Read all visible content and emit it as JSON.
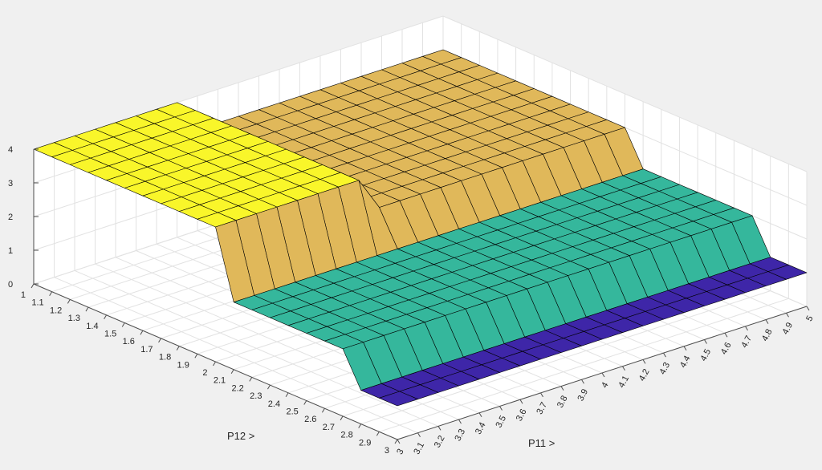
{
  "chart_data": {
    "type": "surface",
    "title": "",
    "xlabel": "P11 >",
    "ylabel": "P12 >",
    "zlabel": "",
    "xlim": [
      3,
      5
    ],
    "ylim": [
      1,
      3
    ],
    "zlim": [
      0,
      4
    ],
    "x_ticks": [
      "3",
      "3.1",
      "3.2",
      "3.3",
      "3.4",
      "3.5",
      "3.6",
      "3.7",
      "3.8",
      "3.9",
      "4",
      "4.1",
      "4.2",
      "4.3",
      "4.4",
      "4.5",
      "4.6",
      "4.7",
      "4.8",
      "4.9",
      "5"
    ],
    "y_ticks": [
      "1",
      "1.1",
      "1.2",
      "1.3",
      "1.4",
      "1.5",
      "1.6",
      "1.7",
      "1.8",
      "1.9",
      "2",
      "2.1",
      "2.2",
      "2.3",
      "2.4",
      "2.5",
      "2.6",
      "2.7",
      "2.8",
      "2.9",
      "3"
    ],
    "z_ticks": [
      "0",
      "1",
      "2",
      "3",
      "4"
    ],
    "grid": true,
    "colormap": {
      "1": "#3e26a8",
      "2": "#35b79c",
      "3": "#e0b85a",
      "4": "#f9f62a"
    },
    "description_rule": "z = 1 for P12 > 2.7; z = 2 for 2.0 < P12 <= 2.7; z = 3 for P12 <= 2.0 and P11 > 3.7; z = 4 for P12 <= 2.0 and P11 <= 3.7 (levels read from the surface)",
    "x": [
      3.0,
      3.1,
      3.2,
      3.3,
      3.4,
      3.5,
      3.6,
      3.7,
      3.8,
      3.9,
      4.0,
      4.1,
      4.2,
      4.3,
      4.4,
      4.5,
      4.6,
      4.7,
      4.8,
      4.9,
      5.0
    ],
    "y": [
      1.0,
      1.1,
      1.2,
      1.3,
      1.4,
      1.5,
      1.6,
      1.7,
      1.8,
      1.9,
      2.0,
      2.1,
      2.2,
      2.3,
      2.4,
      2.5,
      2.6,
      2.7,
      2.8,
      2.9,
      3.0
    ]
  }
}
